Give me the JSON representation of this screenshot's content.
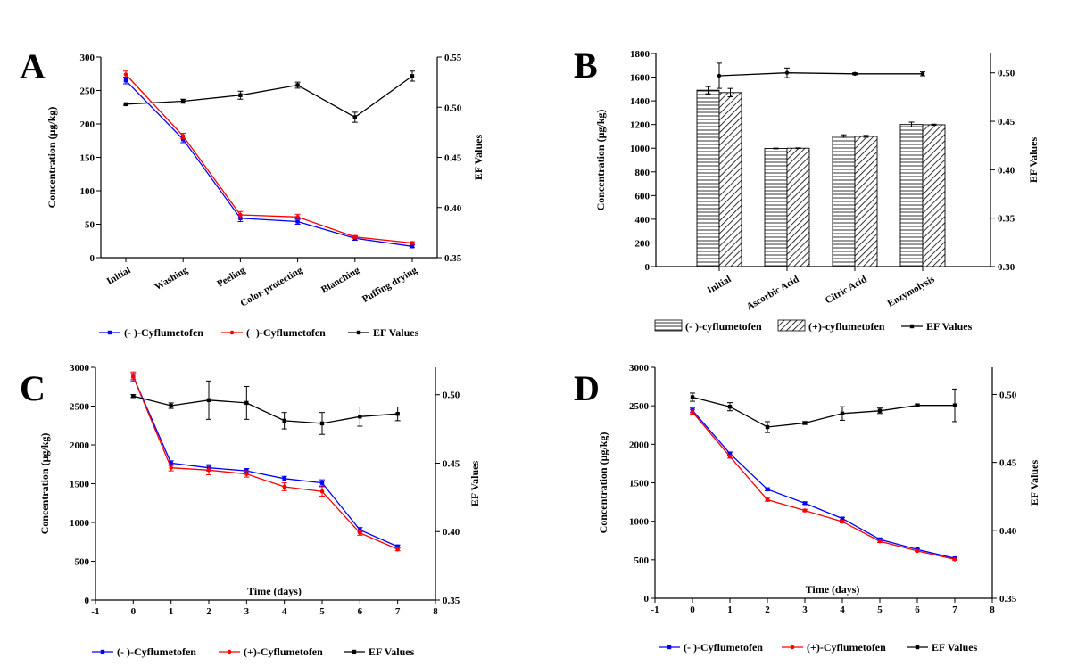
{
  "colors": {
    "minus": "#0000ff",
    "plus": "#ff0000",
    "ef": "#000000",
    "axis": "#000000"
  },
  "chart_data": [
    {
      "panel_label": "A",
      "type": "line",
      "categories": [
        "Initial",
        "Washing",
        "Peeling",
        "Color-protecting",
        "Blanching",
        "Puffing drying"
      ],
      "ylabel": "Concentration (μg/kg)",
      "y2label": "EF Values",
      "ylim": [
        0,
        300
      ],
      "y2lim": [
        0.35,
        0.55
      ],
      "yticks": [
        "0",
        "50",
        "100",
        "150",
        "200",
        "250",
        "300"
      ],
      "y2ticks": [
        "0.35",
        "0.40",
        "0.45",
        "0.50",
        "0.55"
      ],
      "series": [
        {
          "name": "(- )-Cyflumetofen",
          "axis": "left",
          "color": "#0000ff",
          "values": [
            265,
            177,
            59,
            54,
            29,
            17
          ],
          "errors": [
            5,
            5,
            5,
            4,
            3,
            2
          ]
        },
        {
          "name": "(+)-Cyflumetofen",
          "axis": "left",
          "color": "#ff0000",
          "values": [
            274,
            182,
            64,
            61,
            31,
            22
          ],
          "errors": [
            5,
            4,
            5,
            4,
            2,
            2
          ]
        },
        {
          "name": "EF Values",
          "axis": "right",
          "color": "#000000",
          "values": [
            0.503,
            0.506,
            0.512,
            0.522,
            0.49,
            0.531
          ],
          "errors": [
            0.001,
            0.002,
            0.004,
            0.003,
            0.005,
            0.005
          ]
        }
      ],
      "legend_position": "bottom"
    },
    {
      "panel_label": "B",
      "type": "bar",
      "categories": [
        "Initial",
        "Ascorbic Acid",
        "Citric Acid",
        "Enzymolysis"
      ],
      "ylabel": "Concentration (μg/kg)",
      "y2label": "EF Values",
      "ylim": [
        0,
        1800
      ],
      "y2lim": [
        0.3,
        0.52
      ],
      "yticks": [
        "0",
        "200",
        "400",
        "600",
        "800",
        "1000",
        "1200",
        "1400",
        "1600",
        "1800"
      ],
      "y2ticks": [
        "0.30",
        "0.35",
        "0.40",
        "0.45",
        "0.50"
      ],
      "series": [
        {
          "name": "(- )-cyflumetofen",
          "axis": "left",
          "pattern": "horizontal",
          "values": [
            1490,
            998,
            1103,
            1200
          ],
          "errors": [
            30,
            3,
            10,
            20
          ]
        },
        {
          "name": "(+)-cyflumetofen",
          "axis": "left",
          "pattern": "diagonal",
          "values": [
            1470,
            1000,
            1100,
            1198
          ],
          "errors": [
            35,
            3,
            8,
            5
          ]
        },
        {
          "name": "EF Values",
          "axis": "right",
          "type": "line",
          "values": [
            0.497,
            0.5,
            0.499,
            0.499
          ],
          "errors": [
            0.013,
            0.005,
            0.001,
            0.002
          ]
        }
      ],
      "legend_position": "bottom"
    },
    {
      "panel_label": "C",
      "type": "line",
      "x": [
        0,
        1,
        2,
        3,
        4,
        5,
        6,
        7
      ],
      "xlabel": "Time (days)",
      "ylabel": "Concentration (μg/kg)",
      "y2label": "EF Values",
      "xlim": [
        -1,
        8
      ],
      "xticks": [
        "-1",
        "0",
        "1",
        "2",
        "3",
        "4",
        "5",
        "6",
        "7",
        "8"
      ],
      "ylim": [
        0,
        3000
      ],
      "y2lim": [
        0.35,
        0.52
      ],
      "yticks": [
        "0",
        "500",
        "1000",
        "1500",
        "2000",
        "2500",
        "3000"
      ],
      "y2ticks": [
        "0.35",
        "0.40",
        "0.45",
        "0.50"
      ],
      "series": [
        {
          "name": "(- )-Cyflumetofen",
          "axis": "left",
          "color": "#0000ff",
          "values": [
            2880,
            1765,
            1705,
            1665,
            1565,
            1510,
            905,
            690
          ],
          "errors": [
            40,
            30,
            40,
            30,
            30,
            40,
            30,
            20
          ]
        },
        {
          "name": "(+)-Cyflumetofen",
          "axis": "left",
          "color": "#ff0000",
          "values": [
            2880,
            1705,
            1675,
            1625,
            1460,
            1400,
            865,
            655
          ],
          "errors": [
            60,
            40,
            60,
            40,
            50,
            60,
            30,
            20
          ]
        },
        {
          "name": "EF Values",
          "axis": "right",
          "color": "#000000",
          "values": [
            0.499,
            0.492,
            0.496,
            0.494,
            0.481,
            0.479,
            0.484,
            0.486
          ],
          "errors": [
            0.001,
            0.002,
            0.014,
            0.012,
            0.006,
            0.008,
            0.007,
            0.005
          ]
        }
      ],
      "legend_position": "bottom"
    },
    {
      "panel_label": "D",
      "type": "line",
      "x": [
        0,
        1,
        2,
        3,
        4,
        5,
        6,
        7
      ],
      "xlabel": "Time (days)",
      "ylabel": "Concentration (μg/kg)",
      "y2label": "EF Values",
      "xlim": [
        -1,
        8
      ],
      "xticks": [
        "-1",
        "0",
        "1",
        "2",
        "3",
        "4",
        "5",
        "6",
        "7",
        "8"
      ],
      "ylim": [
        0,
        3000
      ],
      "y2lim": [
        0.35,
        0.52
      ],
      "yticks": [
        "0",
        "500",
        "1000",
        "1500",
        "2000",
        "2500",
        "3000"
      ],
      "y2ticks": [
        "0.35",
        "0.40",
        "0.45",
        "0.50"
      ],
      "series": [
        {
          "name": "(- )-Cyflumetofen",
          "axis": "left",
          "color": "#0000ff",
          "values": [
            2440,
            1880,
            1415,
            1235,
            1035,
            765,
            635,
            520
          ],
          "errors": [
            30,
            20,
            20,
            15,
            15,
            15,
            10,
            10
          ]
        },
        {
          "name": "(+)-Cyflumetofen",
          "axis": "left",
          "color": "#ff0000",
          "values": [
            2420,
            1840,
            1280,
            1140,
            995,
            740,
            615,
            505
          ],
          "errors": [
            30,
            20,
            20,
            15,
            15,
            15,
            10,
            10
          ]
        },
        {
          "name": "EF Values",
          "axis": "right",
          "color": "#000000",
          "values": [
            0.498,
            0.491,
            0.476,
            0.479,
            0.486,
            0.488,
            0.492,
            0.492
          ],
          "errors": [
            0.003,
            0.003,
            0.004,
            0.001,
            0.005,
            0.002,
            0.001,
            0.012
          ]
        }
      ],
      "legend_position": "bottom"
    }
  ]
}
